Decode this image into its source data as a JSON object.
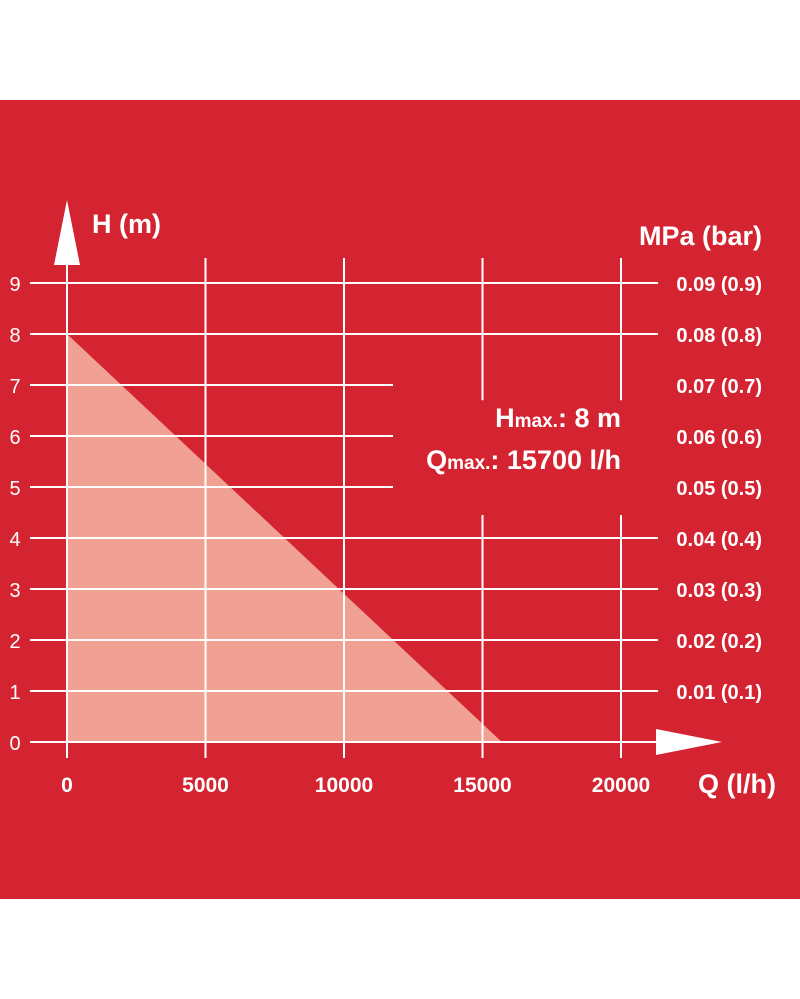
{
  "colors": {
    "background": "#d42331",
    "grid": "#ffffff",
    "area": "#f0a193",
    "text": "#ffffff"
  },
  "chart_data": {
    "type": "area",
    "series": [
      {
        "x": [
          0,
          15700
        ],
        "y": [
          8,
          0
        ]
      }
    ],
    "xlabel": "Q (l/h)",
    "ylabel": "H (m)",
    "y2label": "MPa (bar)",
    "xlim": [
      0,
      20000
    ],
    "ylim": [
      0,
      9
    ],
    "xticks": [
      "0",
      "5000",
      "10000",
      "15000",
      "20000"
    ],
    "yticks": [
      "0",
      "1",
      "2",
      "3",
      "4",
      "5",
      "6",
      "7",
      "8",
      "9"
    ],
    "y2ticks": [
      "0.01 (0.1)",
      "0.02 (0.2)",
      "0.03 (0.3)",
      "0.04 (0.4)",
      "0.05 (0.5)",
      "0.06 (0.6)",
      "0.07 (0.7)",
      "0.08 (0.8)",
      "0.09 (0.9)"
    ],
    "grid": true,
    "annotations": {
      "hmax": {
        "label": "H",
        "sub": "max.",
        "value": ": 8 m"
      },
      "qmax": {
        "label": "Q",
        "sub": "max.",
        "value": ": 15700 l/h"
      }
    }
  }
}
